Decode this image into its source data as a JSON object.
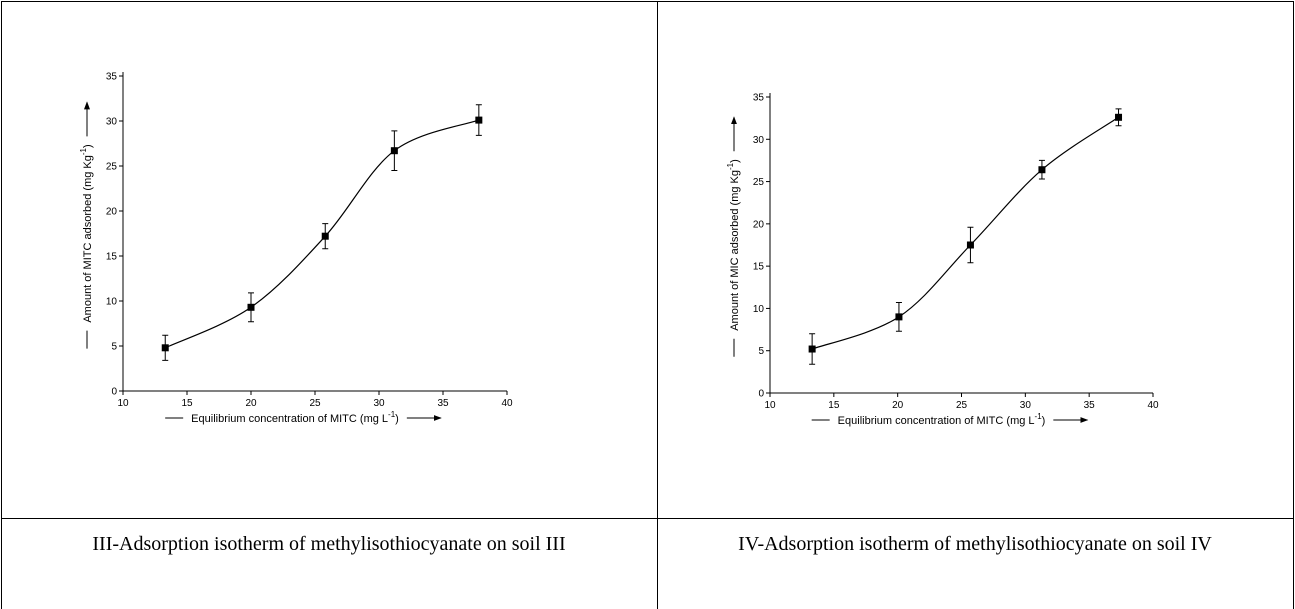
{
  "chart_data": [
    {
      "type": "scatter",
      "x": [
        13.3,
        20,
        25.8,
        31.2,
        37.8
      ],
      "values": [
        4.8,
        9.3,
        17.2,
        26.7,
        30.1
      ],
      "errors": [
        1.4,
        1.6,
        1.4,
        2.2,
        1.7
      ],
      "xlim": [
        10,
        40
      ],
      "xticks": [
        10,
        15,
        20,
        25,
        30,
        35,
        40
      ],
      "ylim": [
        0,
        35
      ],
      "yticks": [
        0,
        5,
        10,
        15,
        20,
        25,
        30,
        35
      ],
      "xlabel": [
        "Equilibrium concentration of MITC (mg L",
        "-1",
        ")"
      ],
      "ylabel": [
        "Amount of  MITC adsorbed (mg Kg",
        "-1",
        ")"
      ],
      "caption": "III-Adsorption isotherm of methylisothiocyanate on soil III",
      "color": "#000000"
    },
    {
      "type": "scatter",
      "x": [
        13.3,
        20.1,
        25.7,
        31.3,
        37.3
      ],
      "values": [
        5.2,
        9.0,
        17.5,
        26.4,
        32.6
      ],
      "errors": [
        1.8,
        1.7,
        2.1,
        1.1,
        1.0
      ],
      "xlim": [
        10,
        40
      ],
      "xticks": [
        10,
        15,
        20,
        25,
        30,
        35,
        40
      ],
      "ylim": [
        0,
        35
      ],
      "yticks": [
        0,
        5,
        10,
        15,
        20,
        25,
        30,
        35
      ],
      "xlabel": [
        "Equilibrium concentration of MITC (mg L",
        "-1",
        ")"
      ],
      "ylabel": [
        "Amount of  MIC adsorbed (mg Kg",
        "-1",
        ")"
      ],
      "caption": "IV-Adsorption isotherm of methylisothiocyanate on soil IV",
      "color": "#000000"
    }
  ]
}
